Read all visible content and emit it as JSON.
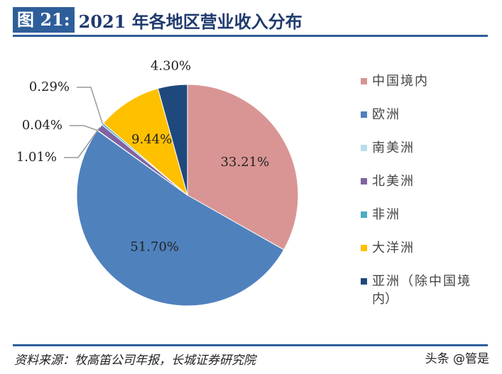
{
  "header": {
    "figure_label": "图 21:",
    "title": "2021 年各地区营业收入分布"
  },
  "chart_data": {
    "type": "pie",
    "title": "2021 年各地区营业收入分布",
    "start": "top",
    "direction": "clockwise",
    "slices": [
      {
        "name": "中国境内",
        "value": 33.21,
        "label": "33.21%",
        "color": "#D99594"
      },
      {
        "name": "欧洲",
        "value": 51.7,
        "label": "51.70%",
        "color": "#4F81BD"
      },
      {
        "name": "南美洲",
        "value": 0.04,
        "label": "0.04%",
        "color": "#B7DEE8"
      },
      {
        "name": "北美洲",
        "value": 1.01,
        "label": "1.01%",
        "color": "#8064A2"
      },
      {
        "name": "非洲",
        "value": 0.29,
        "label": "0.29%",
        "color": "#4BACC6"
      },
      {
        "name": "大洋洲",
        "value": 9.44,
        "label": "9.44%",
        "color": "#FFC000"
      },
      {
        "name": "亚洲（除中国境内）",
        "value": 4.3,
        "label": "4.30%",
        "color": "#1F497D"
      }
    ],
    "legend": {
      "position": "right",
      "items": [
        "中国境内",
        "欧洲",
        "南美洲",
        "北美洲",
        "非洲",
        "大洋洲",
        "亚洲（除中国境内）"
      ]
    }
  },
  "footer": {
    "source": "资料来源：牧高笛公司年报，长城证券研究院",
    "watermark": "头条 @管是"
  }
}
